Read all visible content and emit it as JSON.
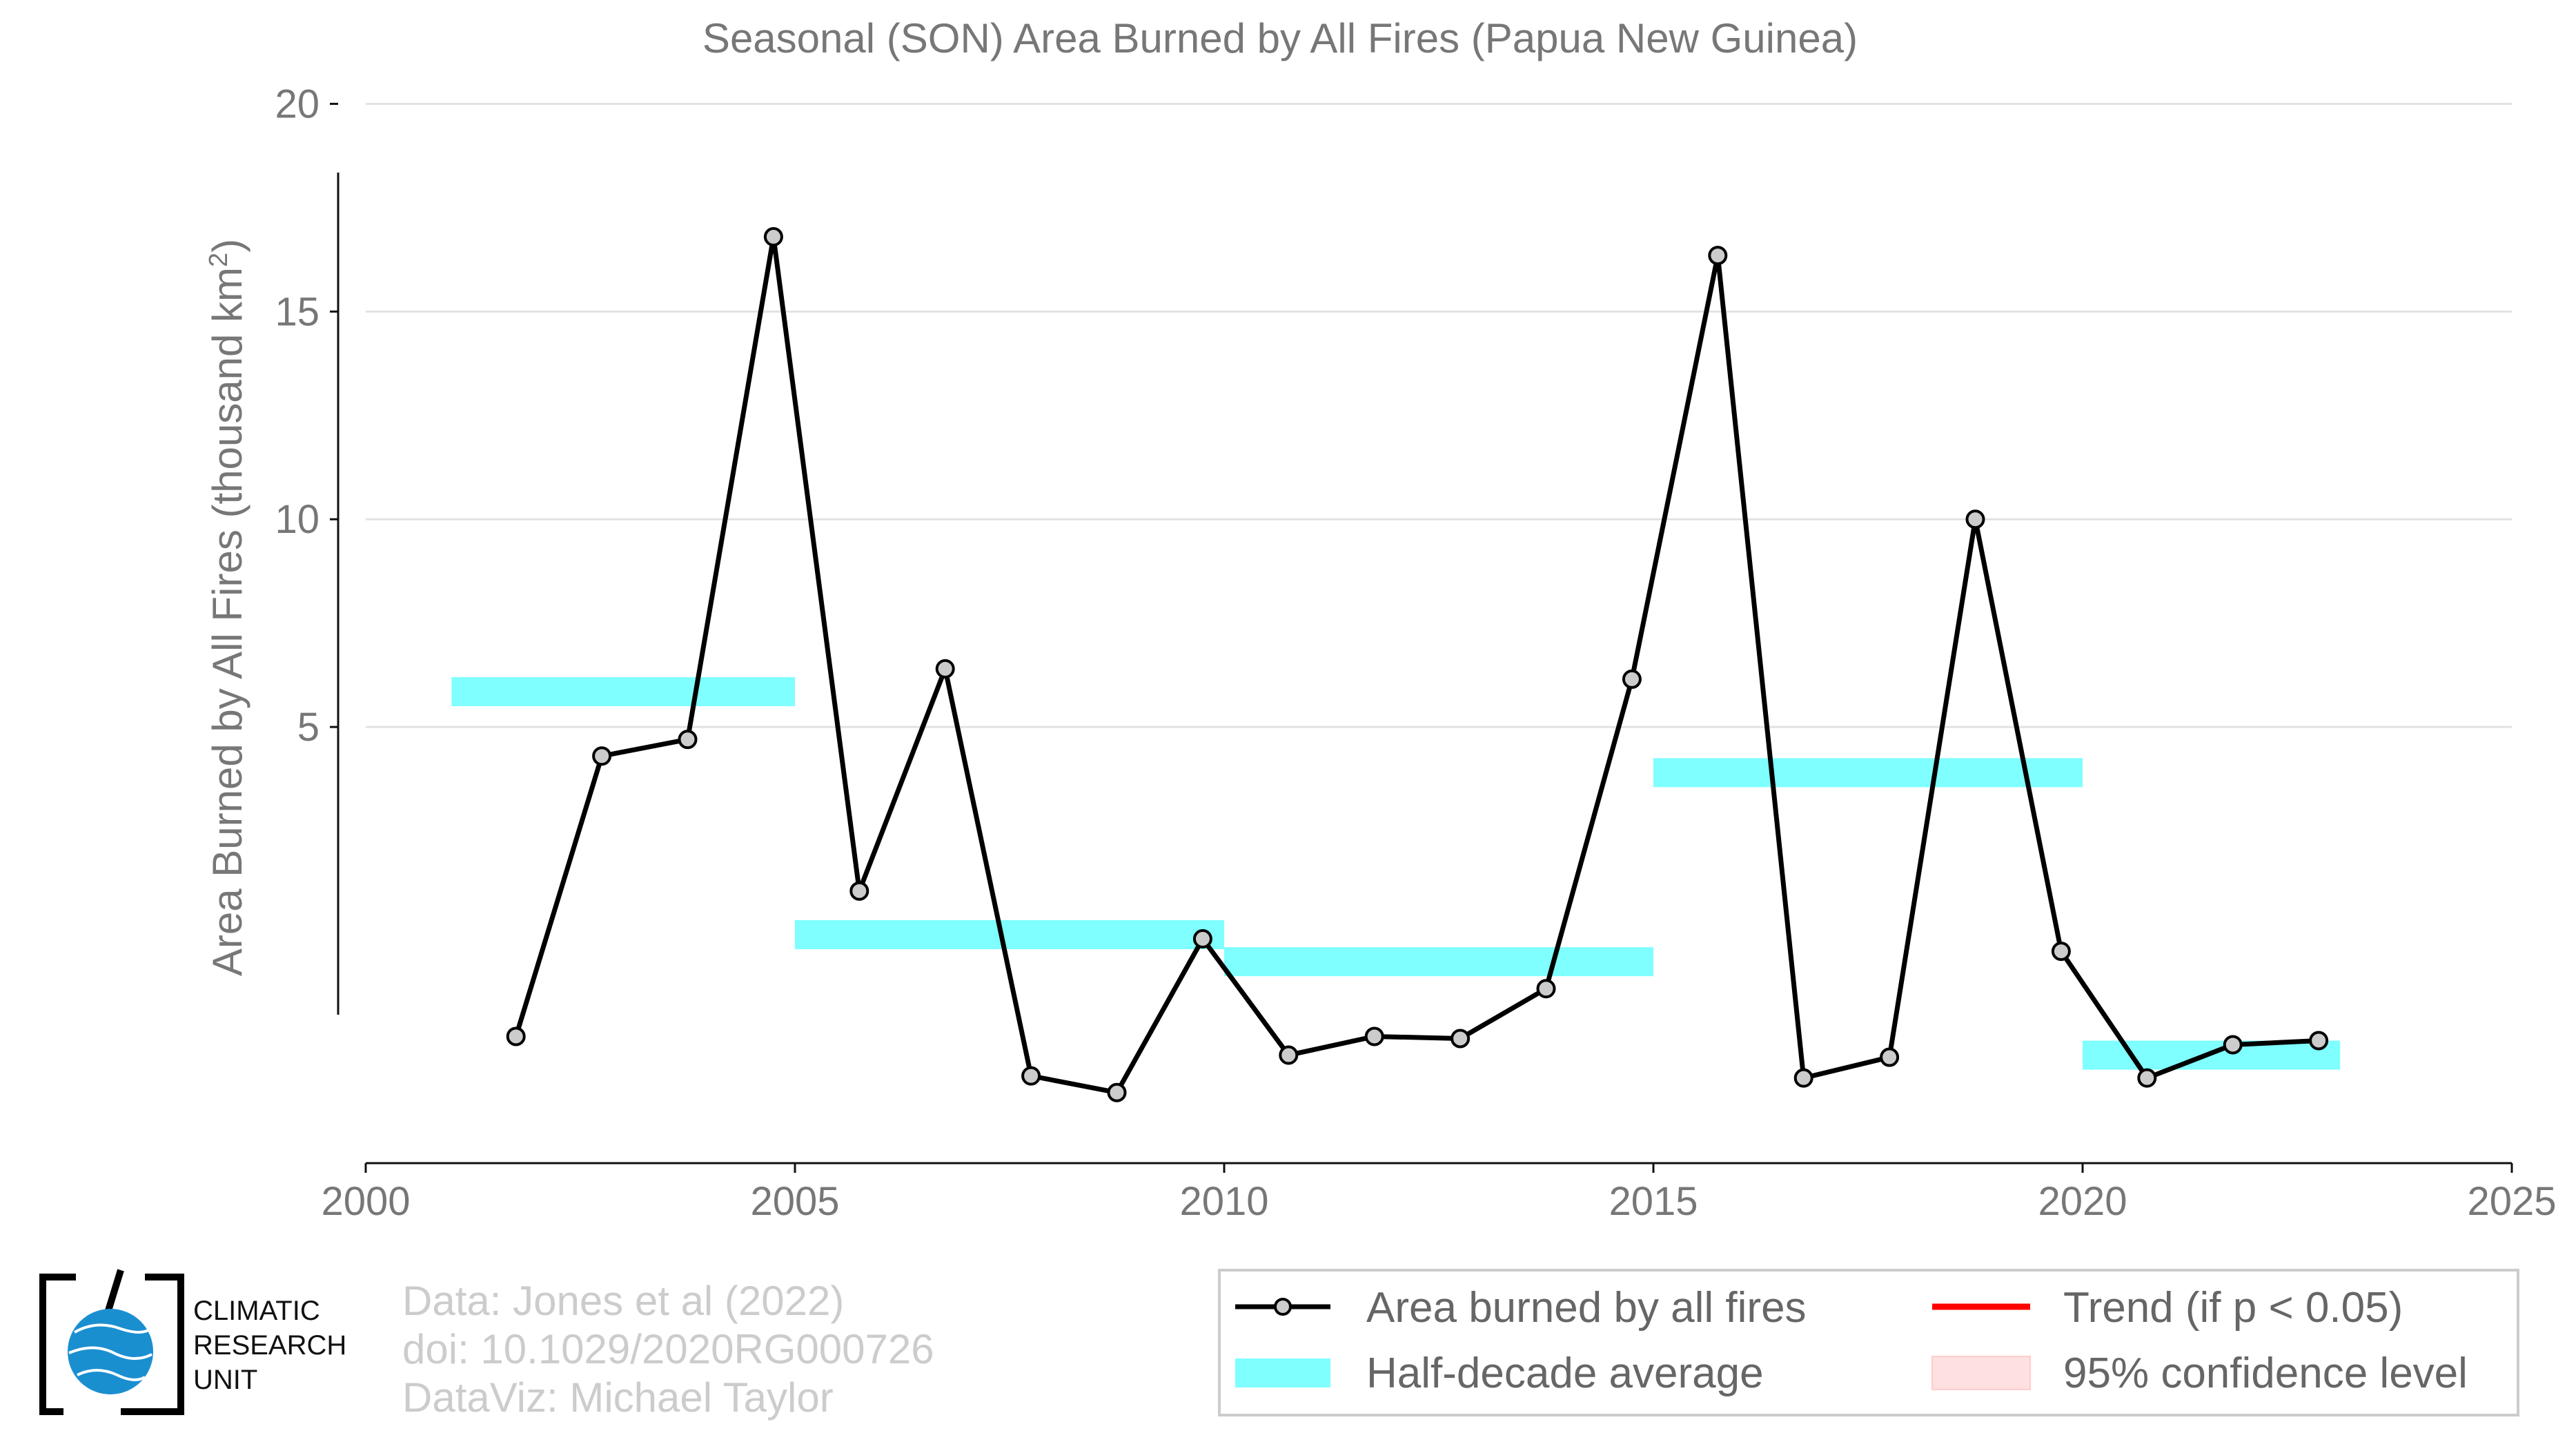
{
  "chart_data": {
    "type": "line",
    "title": "Seasonal (SON) Area Burned by All Fires (Papua New Guinea)",
    "ylabel_main": "Area Burned by All Fires (thousand km",
    "ylabel_sup": "2",
    "ylabel_close": ")",
    "xlim": [
      2000,
      2025
    ],
    "ylim": [
      -5.5,
      22.5
    ],
    "x_ticks": [
      2000,
      2005,
      2010,
      2015,
      2020,
      2025
    ],
    "y_ticks": [
      5,
      10,
      15,
      20
    ],
    "grid": true,
    "series": [
      {
        "name": "Area burned by all fires",
        "x": [
          2001.75,
          2002.75,
          2003.75,
          2004.75,
          2005.75,
          2006.75,
          2007.75,
          2008.75,
          2009.75,
          2010.75,
          2011.75,
          2012.75,
          2013.75,
          2014.75,
          2015.75,
          2016.75,
          2017.75,
          2018.75,
          2019.75,
          2020.75,
          2021.75,
          2022.75
        ],
        "y": [
          -2.45,
          4.3,
          4.7,
          16.8,
          1.05,
          6.4,
          -3.4,
          -3.8,
          -0.1,
          -2.9,
          -2.45,
          -2.5,
          -1.3,
          6.15,
          16.35,
          -3.45,
          -2.95,
          10.0,
          -0.4,
          -3.45,
          -2.65,
          -2.55
        ]
      }
    ],
    "half_decade_average": [
      {
        "x_start": 2001,
        "x_end": 2005,
        "y": 5.85
      },
      {
        "x_start": 2005,
        "x_end": 2010,
        "y": 0.0
      },
      {
        "x_start": 2010,
        "x_end": 2015,
        "y": -0.65
      },
      {
        "x_start": 2015,
        "x_end": 2020,
        "y": 3.9
      },
      {
        "x_start": 2020,
        "x_end": 2023,
        "y": -2.9
      }
    ],
    "legend": {
      "placement": "bottom-right",
      "entries": [
        {
          "label": "Area burned by all fires",
          "color": "#000000"
        },
        {
          "label": "Trend (if p < 0.05)",
          "color": "#ff0000"
        },
        {
          "label": "Half-decade average",
          "color": "#80ffff"
        },
        {
          "label": "95% confidence level",
          "color": "#ffe0e0"
        }
      ]
    },
    "credits": [
      "Data: Jones et al (2022)",
      "doi: 10.1029/2020RG000726",
      "DataViz: Michael Taylor"
    ]
  },
  "logo": {
    "line1": "CLIMATIC",
    "line2": "RESEARCH",
    "line3": "UNIT",
    "color": "#1a8fd0"
  }
}
